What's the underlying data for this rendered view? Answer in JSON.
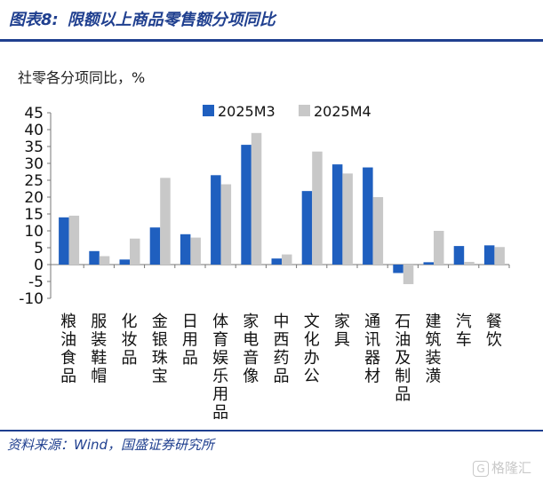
{
  "header": {
    "figure_no": "图表8:",
    "title": "限额以上商品零售额分项同比"
  },
  "unit_label": "社零各分项同比，%",
  "source": "资料来源：Wind，国盛证券研究所",
  "watermark": "格隆汇",
  "colors": {
    "series_1": "#1f5fbf",
    "series_2": "#c8c8c8",
    "title": "#1f3f8f",
    "axis": "#777777"
  },
  "chart_data": {
    "type": "bar",
    "title": "",
    "xlabel": "",
    "ylabel": "社零各分项同比，%",
    "ylim": [
      -10,
      45
    ],
    "yticks": [
      -10,
      -5,
      0,
      5,
      10,
      15,
      20,
      25,
      30,
      35,
      40,
      45
    ],
    "grid": false,
    "legend_position": "top-right",
    "categories": [
      "粮油食品",
      "服装鞋帽",
      "化妆品",
      "金银珠宝",
      "日用品",
      "体育娱乐用品",
      "家电音像",
      "中西药品",
      "文化办公",
      "家具",
      "通讯器材",
      "石油及制品",
      "建筑装潢",
      "汽车",
      "餐饮"
    ],
    "series": [
      {
        "name": "2025M3",
        "values": [
          14.0,
          4.0,
          1.5,
          11.0,
          9.0,
          26.5,
          35.5,
          1.8,
          21.8,
          29.7,
          28.8,
          -2.5,
          0.7,
          5.5,
          5.7
        ]
      },
      {
        "name": "2025M4",
        "values": [
          14.5,
          2.5,
          7.7,
          25.7,
          8.0,
          23.8,
          39.0,
          3.0,
          33.5,
          27.0,
          20.0,
          -5.8,
          10.0,
          0.8,
          5.2
        ]
      }
    ]
  }
}
